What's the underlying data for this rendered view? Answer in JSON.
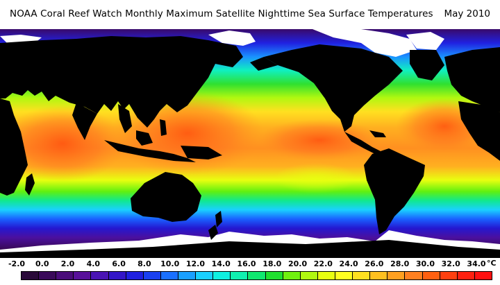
{
  "header": {
    "title": "NOAA Coral Reef Watch Monthly Maximum Satellite Nighttime Sea Surface Temperatures",
    "date": "May 2010"
  },
  "legend": {
    "unit": "°C",
    "labels": [
      "-2.0",
      "0.0",
      "2.0",
      "4.0",
      "6.0",
      "8.0",
      "10.0",
      "12.0",
      "14.0",
      "16.0",
      "18.0",
      "20.0",
      "22.0",
      "24.0",
      "26.0",
      "28.0",
      "30.0",
      "32.0",
      "34.0"
    ],
    "colors": [
      "#2a0a3a",
      "#3a0a5a",
      "#4a0c7a",
      "#58109a",
      "#4a14b4",
      "#3416c8",
      "#2020e0",
      "#1a40f0",
      "#1a70ff",
      "#1aa0ff",
      "#1ad0ff",
      "#10f0e0",
      "#10f0b0",
      "#10e870",
      "#20e030",
      "#70f010",
      "#b0f810",
      "#e8ff10",
      "#ffff20",
      "#ffe020",
      "#ffc020",
      "#ffa020",
      "#ff8020",
      "#ff6010",
      "#ff4010",
      "#ff2010",
      "#ff1010"
    ],
    "color_values": [
      -2,
      -1,
      0,
      1,
      2,
      3,
      4,
      6,
      8,
      10,
      12,
      14,
      16,
      17,
      18,
      20,
      21,
      22,
      23,
      24,
      25,
      26,
      27,
      28,
      29,
      30,
      32
    ]
  },
  "map": {
    "land_color": "#000000",
    "ice_color": "#ffffff",
    "palette_anchors": [
      "#2a0a3a",
      "#4a0c7a",
      "#3416c8",
      "#1a70ff",
      "#10f0e0",
      "#10e870",
      "#70f010",
      "#e8ff10",
      "#ffc020",
      "#ff8020",
      "#ff4010"
    ]
  }
}
